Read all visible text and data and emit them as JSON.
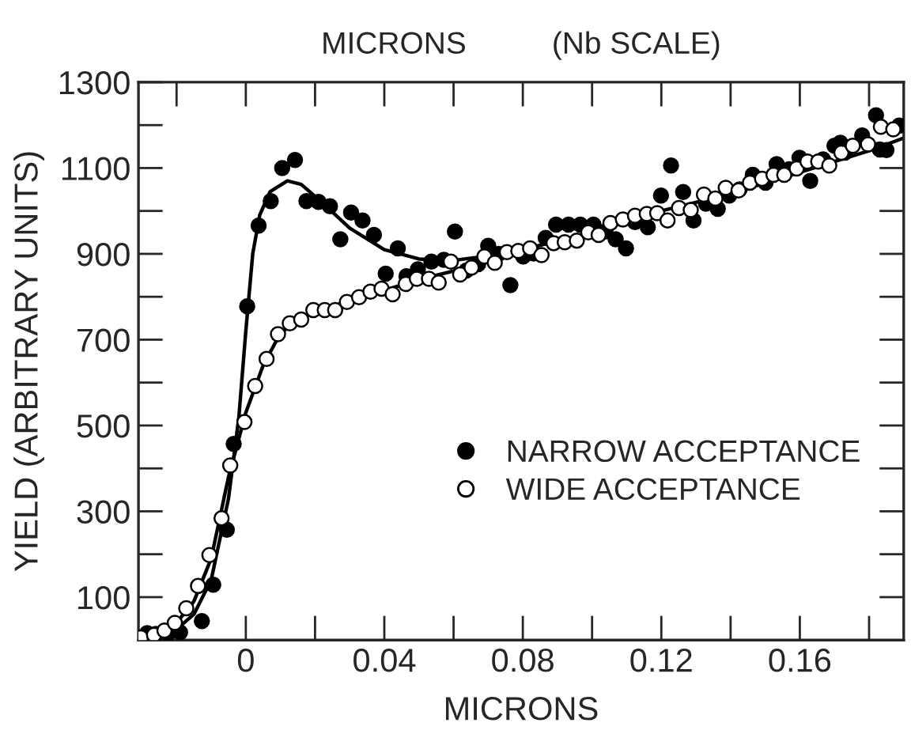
{
  "chart_data": {
    "type": "scatter",
    "xlabel": "MICRONS",
    "ylabel": "YIELD (ARBITRARY UNITS)",
    "x2label": "MICRONS          (Nb SCALE)",
    "xlim": [
      -0.031,
      0.19
    ],
    "ylim": [
      0,
      1300
    ],
    "xticks": [
      {
        "value": -0.02,
        "label": null
      },
      0,
      {
        "value": 0.02,
        "label": null
      },
      0.04,
      {
        "value": 0.06,
        "label": null
      },
      0.08,
      {
        "value": 0.1,
        "label": null
      },
      0.12,
      {
        "value": 0.14,
        "label": null
      },
      0.16,
      {
        "value": 0.18,
        "label": null
      }
    ],
    "yticks": [
      100,
      {
        "value": 200,
        "label": null
      },
      300,
      {
        "value": 400,
        "label": null
      },
      500,
      {
        "value": 600,
        "label": null
      },
      700,
      {
        "value": 800,
        "label": null
      },
      900,
      {
        "value": 1000,
        "label": null
      },
      1100,
      {
        "value": 1200,
        "label": null
      },
      1300
    ],
    "grid": false,
    "legend": "center right",
    "marker": "circle",
    "series": [
      {
        "type": "line",
        "marker": "none",
        "color": "#000000",
        "x": [
          -0.03,
          -0.02,
          -0.015,
          -0.01,
          -0.005,
          -0.002,
          0,
          0.002,
          0.004,
          0.007,
          0.012,
          0.016,
          0.022,
          0.03,
          0.04,
          0.05,
          0.06,
          0.07,
          0.08,
          0.1,
          0.12,
          0.14,
          0.16,
          0.18,
          0.19
        ],
        "values": [
          10,
          25,
          60,
          140,
          330,
          520,
          720,
          900,
          990,
          1045,
          1070,
          1062,
          1020,
          960,
          910,
          888,
          885,
          895,
          910,
          950,
          1000,
          1040,
          1090,
          1140,
          1170
        ]
      },
      {
        "type": "line",
        "marker": "none",
        "color": "#000000",
        "x": [
          -0.03,
          -0.02,
          -0.015,
          -0.01,
          -0.005,
          0,
          0.005,
          0.01,
          0.015,
          0.02,
          0.03,
          0.04,
          0.05,
          0.06,
          0.07
        ],
        "values": [
          10,
          40,
          90,
          190,
          380,
          530,
          640,
          715,
          745,
          765,
          790,
          815,
          840,
          860,
          890
        ]
      },
      {
        "name": "NARROW ACCEPTANCE",
        "color": "#000000",
        "x": [
          -0.0285,
          -0.026,
          -0.0225,
          -0.019,
          -0.0127,
          -0.0094,
          -0.0055,
          -0.0035,
          0.0004,
          0.0037,
          0.0072,
          0.0105,
          0.0142,
          0.0175,
          0.021,
          0.0243,
          0.0273,
          0.0304,
          0.0337,
          0.037,
          0.0404,
          0.0439,
          0.0464,
          0.0497,
          0.0536,
          0.0572,
          0.0604,
          0.0637,
          0.0671,
          0.07,
          0.073,
          0.0764,
          0.0801,
          0.0831,
          0.0866,
          0.0896,
          0.0932,
          0.0966,
          0.1004,
          0.1038,
          0.1068,
          0.1098,
          0.1124,
          0.1161,
          0.1199,
          0.1228,
          0.1263,
          0.1293,
          0.1329,
          0.1363,
          0.1396,
          0.1426,
          0.1464,
          0.1501,
          0.1533,
          0.1569,
          0.1599,
          0.163,
          0.1667,
          0.17,
          0.173,
          0.1717,
          0.178,
          0.182,
          0.1831,
          0.185,
          0.1887
        ],
        "values": [
          16,
          14,
          14,
          18,
          44,
          129,
          257,
          457,
          778,
          966,
          1023,
          1100,
          1119,
          1023,
          1021,
          1011,
          934,
          996,
          978,
          944,
          854,
          913,
          848,
          864,
          882,
          886,
          952,
          861,
          876,
          919,
          900,
          827,
          894,
          901,
          937,
          968,
          968,
          968,
          968,
          952,
          934,
          913,
          974,
          962,
          1036,
          1106,
          1044,
          978,
          1017,
          1005,
          1036,
          1050,
          1084,
          1066,
          1109,
          1097,
          1124,
          1070,
          1120,
          1152,
          1136,
          1159,
          1176,
          1223,
          1143,
          1142,
          1199
        ]
      },
      {
        "name": "WIDE ACCEPTANCE",
        "color": "#ffffff",
        "x": [
          -0.0303,
          -0.0265,
          -0.0235,
          -0.0205,
          -0.0172,
          -0.0138,
          -0.0105,
          -0.007,
          -0.0045,
          -0.0004,
          0.0027,
          0.006,
          0.0093,
          0.0127,
          0.016,
          0.0195,
          0.0228,
          0.0258,
          0.0292,
          0.0327,
          0.036,
          0.0392,
          0.0424,
          0.0462,
          0.0494,
          0.0529,
          0.0557,
          0.0592,
          0.0619,
          0.0652,
          0.0689,
          0.0719,
          0.0754,
          0.0787,
          0.0821,
          0.0854,
          0.0889,
          0.0921,
          0.0956,
          0.0989,
          0.1019,
          0.1053,
          0.1089,
          0.1124,
          0.1158,
          0.1188,
          0.1218,
          0.1251,
          0.1285,
          0.1323,
          0.1356,
          0.1386,
          0.1423,
          0.1456,
          0.1491,
          0.1524,
          0.1555,
          0.1591,
          0.1622,
          0.1653,
          0.1685,
          0.172,
          0.1753,
          0.1797,
          0.1834,
          0.187
        ],
        "values": [
          6,
          12,
          22,
          40,
          74,
          126,
          198,
          284,
          407,
          508,
          592,
          655,
          713,
          738,
          747,
          769,
          769,
          769,
          788,
          799,
          812,
          819,
          806,
          830,
          842,
          842,
          833,
          882,
          852,
          868,
          894,
          879,
          904,
          907,
          913,
          897,
          925,
          927,
          931,
          950,
          944,
          972,
          980,
          989,
          993,
          995,
          978,
          1007,
          1002,
          1038,
          1029,
          1054,
          1048,
          1066,
          1075,
          1084,
          1084,
          1099,
          1115,
          1115,
          1106,
          1136,
          1152,
          1155,
          1196,
          1190
        ]
      }
    ]
  }
}
